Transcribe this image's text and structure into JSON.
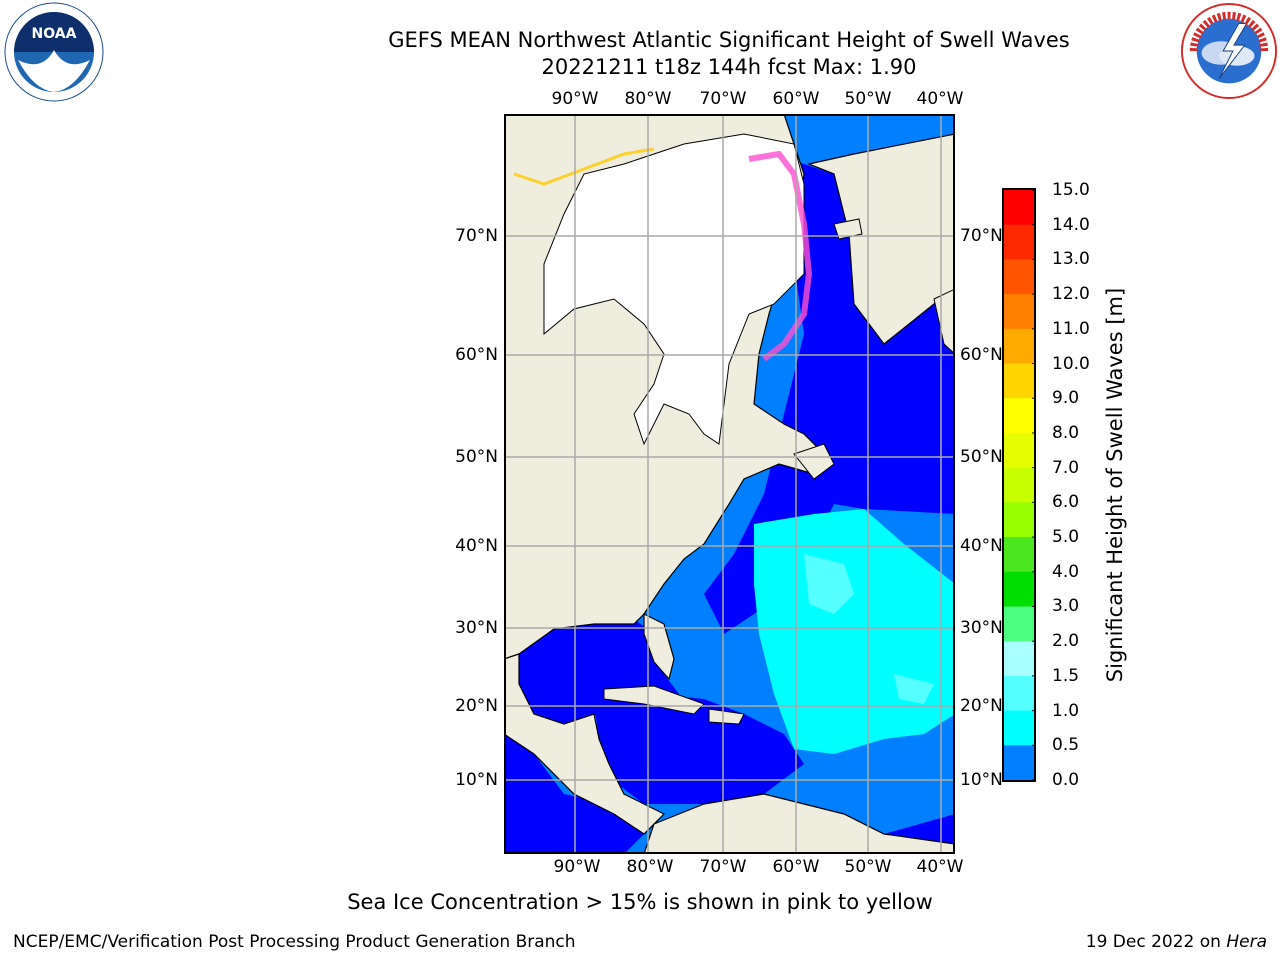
{
  "header": {
    "title_line1": "GEFS MEAN Northwest Atlantic Significant Height of Swell Waves",
    "title_line2": "20221211 t18z 144h fcst   Max: 1.90"
  },
  "logos": {
    "left": "noaa-logo",
    "right": "national-weather-service-logo"
  },
  "map": {
    "lon_ticks": [
      "90°W",
      "80°W",
      "70°W",
      "60°W",
      "50°W",
      "40°W"
    ],
    "lat_ticks": [
      "70°N",
      "60°N",
      "50°N",
      "40°N",
      "30°N",
      "20°N",
      "10°N"
    ],
    "land_color": "#efedde",
    "ice_color": "#ffffff",
    "grid": true
  },
  "colorbar": {
    "title": "Significant Height of Swell Waves [m]",
    "levels": [
      "15.0",
      "14.0",
      "13.0",
      "12.0",
      "11.0",
      "10.0",
      "9.0",
      "8.0",
      "7.0",
      "6.0",
      "5.0",
      "4.0",
      "3.0",
      "2.0",
      "1.5",
      "1.0",
      "0.5",
      "0.0"
    ],
    "colors": [
      "#ff0000",
      "#ff2a00",
      "#ff5500",
      "#ff8000",
      "#ffaa00",
      "#ffd500",
      "#ffff00",
      "#e6ff00",
      "#c8ff00",
      "#96ff00",
      "#4be61e",
      "#00dd00",
      "#4dff80",
      "#aaffff",
      "#55ffff",
      "#00ffff",
      "#0080ff",
      "#0000ff"
    ]
  },
  "note": "Sea Ice Concentration > 15% is shown in pink to yellow",
  "footer": {
    "left": "NCEP/EMC/Verification Post Processing Product Generation Branch",
    "date": "19 Dec 2022 on",
    "machine": "Hera"
  }
}
